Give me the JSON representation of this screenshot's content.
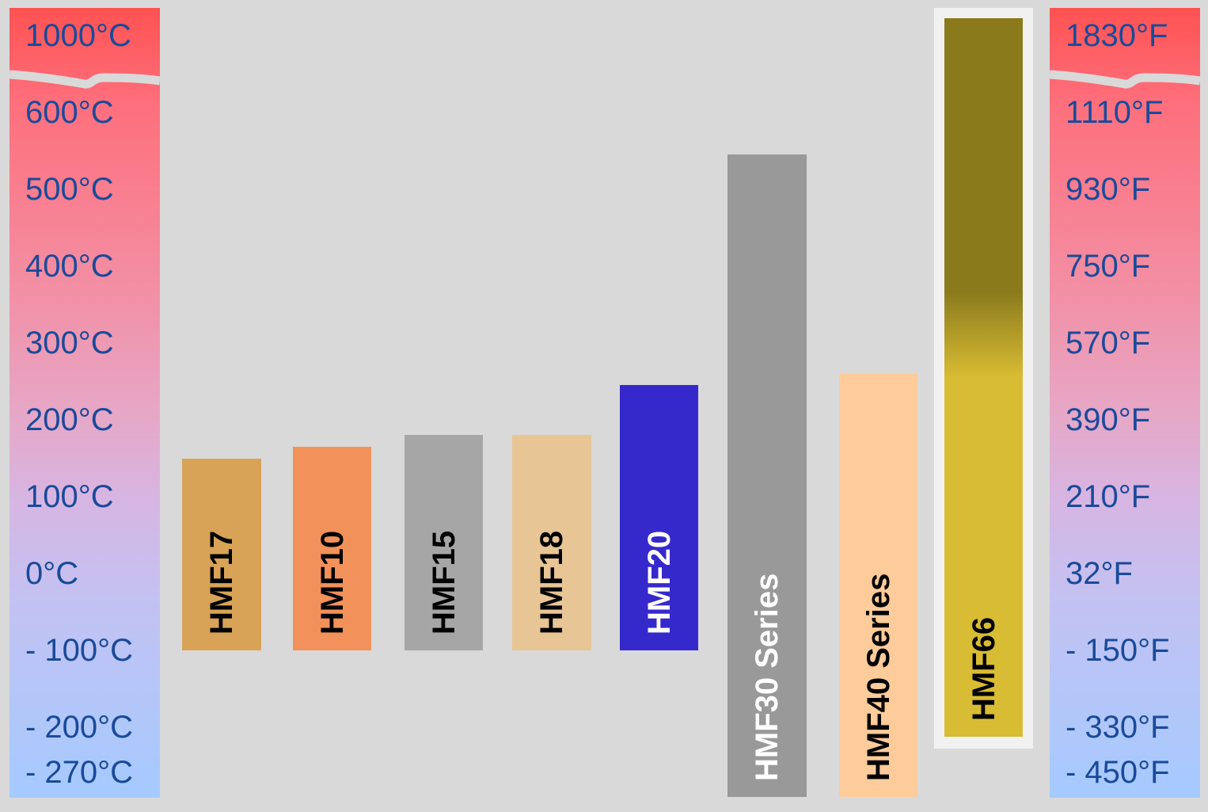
{
  "chart_data": {
    "type": "bar",
    "subtype": "floating-range",
    "axis_break": "between 600°C and 1000°C",
    "celsius_ticks": [
      {
        "value": 1000,
        "label": "1000°C"
      },
      {
        "value": 600,
        "label": "600°C"
      },
      {
        "value": 500,
        "label": "500°C"
      },
      {
        "value": 400,
        "label": "400°C"
      },
      {
        "value": 300,
        "label": "300°C"
      },
      {
        "value": 200,
        "label": "200°C"
      },
      {
        "value": 100,
        "label": "100°C"
      },
      {
        "value": 0,
        "label": "0°C"
      },
      {
        "value": -100,
        "label": "- 100°C"
      },
      {
        "value": -200,
        "label": "- 200°C"
      },
      {
        "value": -270,
        "label": "- 270°C"
      }
    ],
    "fahrenheit_ticks": [
      "1830°F",
      "1110°F",
      "930°F",
      "750°F",
      "570°F",
      "390°F",
      "210°F",
      "32°F",
      "- 150°F",
      "- 330°F",
      "- 450°F"
    ],
    "series": [
      {
        "name": "HMF17",
        "min": -100,
        "max": 150,
        "color": "#d8a356",
        "text_color": "#000000"
      },
      {
        "name": "HMF10",
        "min": -100,
        "max": 165,
        "color": "#f2915a",
        "text_color": "#000000"
      },
      {
        "name": "HMF15",
        "min": -100,
        "max": 180,
        "color": "#a6a6a6",
        "text_color": "#000000"
      },
      {
        "name": "HMF18",
        "min": -100,
        "max": 180,
        "color": "#e8c595",
        "text_color": "#000000"
      },
      {
        "name": "HMF20",
        "min": -100,
        "max": 245,
        "color": "#3629cc",
        "text_color": "#ffffff"
      },
      {
        "name": "HMF30 Series",
        "min": -270,
        "max": 545,
        "color": "#999999",
        "text_color": "#ffffff"
      },
      {
        "name": "HMF40 Series",
        "min": -270,
        "max": 260,
        "color": "#fecb9a",
        "text_color": "#000000"
      },
      {
        "name": "HMF66",
        "min": -210,
        "max": 1000,
        "color": "#8a7a1c",
        "color2": "#d8bc33",
        "text_color": "#000000",
        "highlighted": true
      }
    ],
    "colors": {
      "scale_top": "#ff5252",
      "scale_bottom": "#a5caff",
      "tick_text": "#1a4a9a",
      "background": "#d9d9d9"
    }
  }
}
